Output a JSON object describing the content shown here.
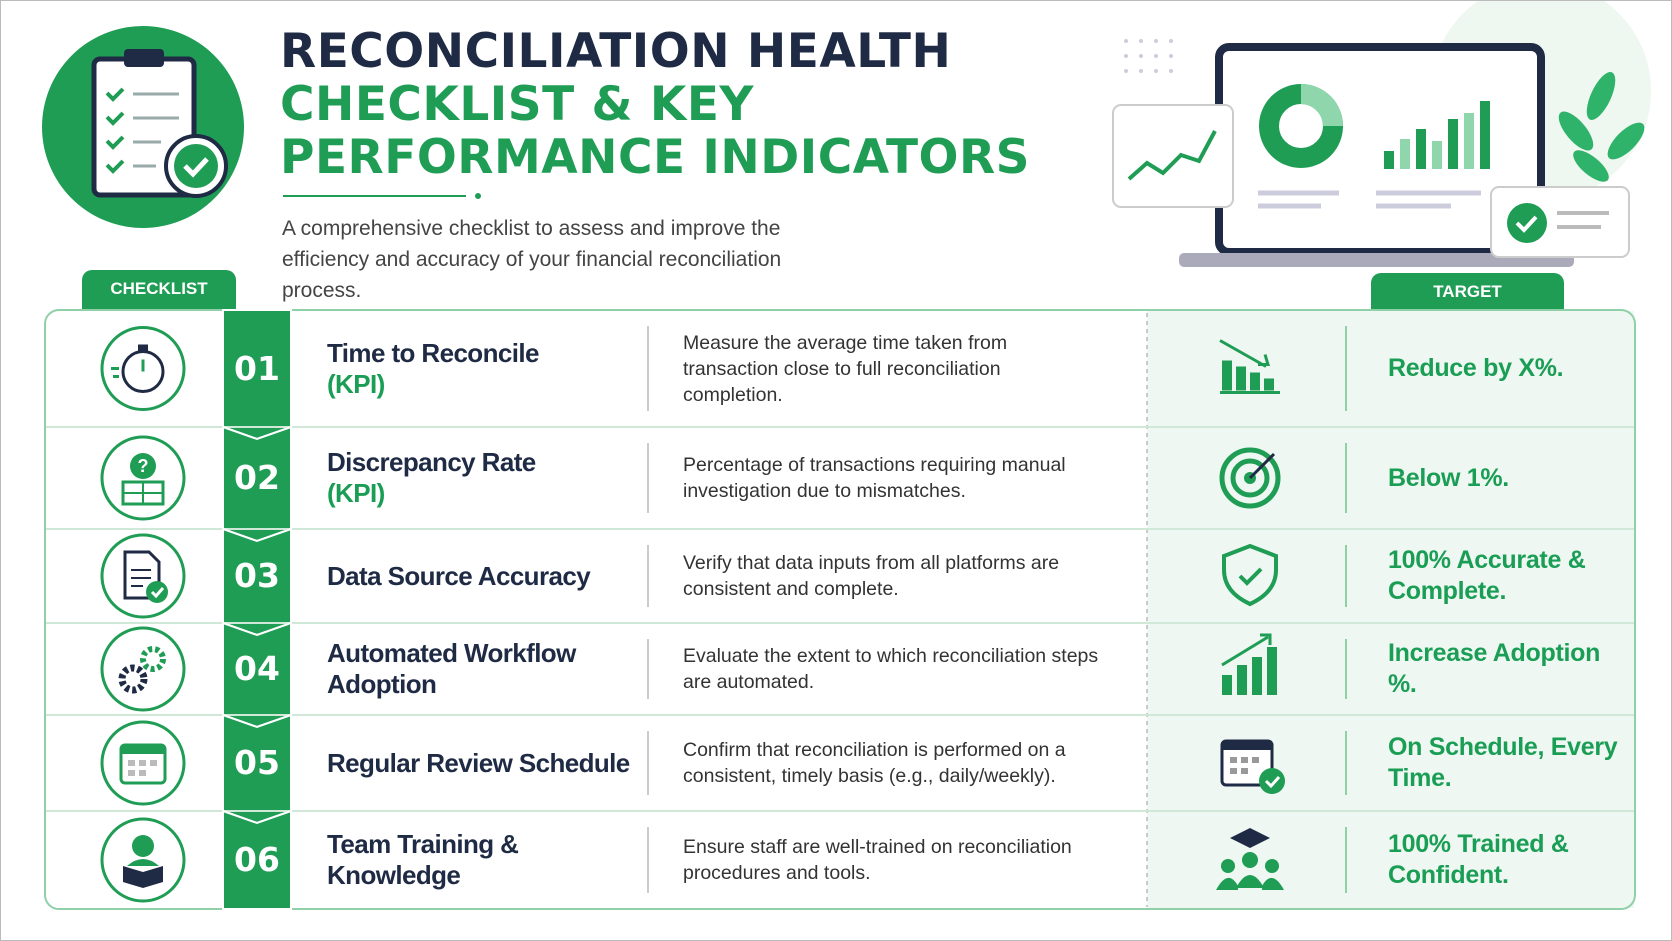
{
  "header": {
    "title_lines": [
      "RECONCILIATION HEALTH",
      "CHECKLIST & KEY",
      "PERFORMANCE INDICATORS"
    ],
    "subtitle": "A comprehensive checklist to assess and improve the efficiency and accuracy of your financial reconciliation process."
  },
  "labels": {
    "checklist": "CHECKLIST",
    "target": "TARGET"
  },
  "rows": [
    {
      "number": "01",
      "title": "Time to Reconcile",
      "tag": "(KPI)",
      "description": "Measure the average time taken from transaction close to full reconciliation completion.",
      "target": "Reduce by X%."
    },
    {
      "number": "02",
      "title": "Discrepancy Rate",
      "tag": "(KPI)",
      "description": "Percentage of transactions requiring manual investigation due to mismatches.",
      "target": "Below 1%."
    },
    {
      "number": "03",
      "title": "Data Source Accuracy",
      "description": "Verify that data inputs from all platforms are consistent and complete.",
      "target": "100% Accurate & Complete."
    },
    {
      "number": "04",
      "title": "Automated Workflow Adoption",
      "description": "Evaluate the extent to which reconciliation steps are automated.",
      "target": "Increase Adoption %."
    },
    {
      "number": "05",
      "title": "Regular Review Schedule",
      "description": "Confirm that reconciliation is performed on a consistent, timely basis (e.g., daily/weekly).",
      "target": "On Schedule, Every Time."
    },
    {
      "number": "06",
      "title": "Team Training & Knowledge",
      "description": "Ensure staff are well-trained on reconciliation procedures and tools.",
      "target": "100% Trained & Confident."
    }
  ]
}
